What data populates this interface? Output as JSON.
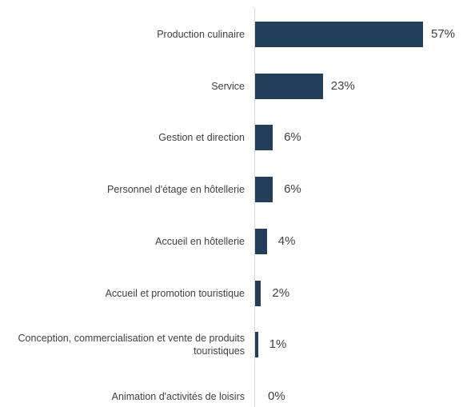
{
  "chart_data": {
    "type": "bar",
    "orientation": "horizontal",
    "categories": [
      "Production culinaire",
      "Service",
      "Gestion et direction",
      "Personnel d'étage en hôtellerie",
      "Accueil en hôtellerie",
      "Accueil et promotion touristique",
      "Conception, commercialisation et vente de produits touristiques",
      "Animation d'activités de loisirs"
    ],
    "values": [
      57,
      23,
      6,
      6,
      4,
      2,
      1,
      0
    ],
    "value_labels": [
      "57%",
      "23%",
      "6%",
      "6%",
      "4%",
      "2%",
      "1%",
      "0%"
    ],
    "unit": "%",
    "xlim": [
      0,
      57
    ],
    "grid": false,
    "legend": "none",
    "bar_color": "#213f5a"
  }
}
